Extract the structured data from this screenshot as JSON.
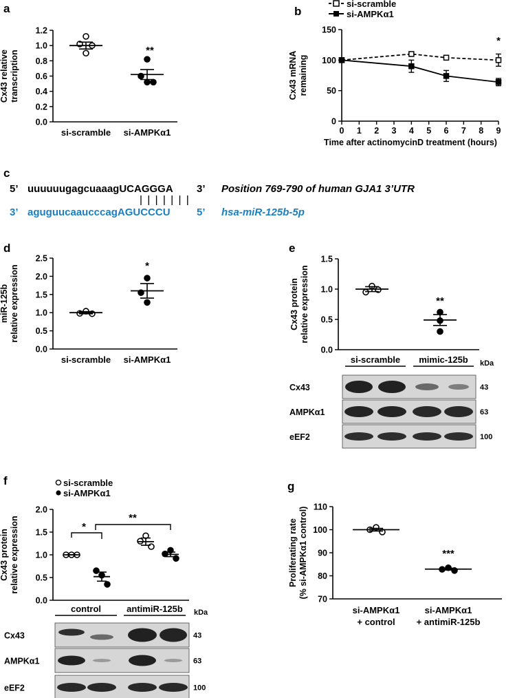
{
  "panels": {
    "a": "a",
    "b": "b",
    "c": "c",
    "d": "d",
    "e": "e",
    "f": "f",
    "g": "g"
  },
  "colors": {
    "mirna_blue": "#1a7fc1",
    "band": "#222222",
    "membrane": "#d2d2d2"
  },
  "chart_data": [
    {
      "id": "a",
      "type": "scatter",
      "ylabel": [
        "Cx43 relative",
        "transcription"
      ],
      "ylim": [
        0,
        1.2
      ],
      "yticks": [
        "0.0",
        "0.2",
        "0.4",
        "0.6",
        "0.8",
        "1.0",
        "1.2"
      ],
      "categories": [
        "si-scramble",
        "si-AMPKα1"
      ],
      "groups": [
        {
          "category": "si-scramble",
          "marker": "open",
          "points": [
            1.12,
            1.02,
            1.0,
            0.9
          ],
          "mean": 1.0,
          "sem": 0.045
        },
        {
          "category": "si-AMPKα1",
          "marker": "filled",
          "points": [
            0.82,
            0.6,
            0.52,
            0.52
          ],
          "mean": 0.62,
          "sem": 0.065
        }
      ],
      "annotations": [
        "**"
      ]
    },
    {
      "id": "b",
      "type": "line",
      "ylabel": [
        "Cx43 mRNA",
        "remaining"
      ],
      "xlabel": "Time after actinomycinD treatment (hours)",
      "xlim": [
        0,
        9
      ],
      "ylim": [
        0,
        150
      ],
      "xticks": [
        "0",
        "1",
        "2",
        "3",
        "4",
        "5",
        "6",
        "7",
        "8",
        "9"
      ],
      "yticks": [
        "0",
        "50",
        "100",
        "150"
      ],
      "series": [
        {
          "name": "si-scramble",
          "marker": "open-square",
          "dash": true,
          "x": [
            0,
            4,
            6,
            9
          ],
          "y": [
            100,
            110,
            104,
            100
          ],
          "err": [
            2,
            3,
            2,
            10
          ]
        },
        {
          "name": "si-AMPKα1",
          "marker": "filled-square",
          "dash": false,
          "x": [
            0,
            4,
            6,
            9
          ],
          "y": [
            100,
            90,
            74,
            64
          ],
          "err": [
            2,
            10,
            9,
            6
          ]
        }
      ],
      "annotations": [
        "*"
      ]
    },
    {
      "id": "d",
      "type": "scatter",
      "ylabel": [
        "miR-125b",
        "relative expression"
      ],
      "ylim": [
        0,
        2.5
      ],
      "yticks": [
        "0.0",
        "0.5",
        "1.0",
        "1.5",
        "2.0",
        "2.5"
      ],
      "categories": [
        "si-scramble",
        "si-AMPKα1"
      ],
      "groups": [
        {
          "category": "si-scramble",
          "marker": "open",
          "points": [
            1.04,
            0.98,
            0.97
          ],
          "mean": 1.0,
          "sem": 0.03
        },
        {
          "category": "si-AMPKα1",
          "marker": "filled",
          "points": [
            1.95,
            1.55,
            1.28
          ],
          "mean": 1.6,
          "sem": 0.2
        }
      ],
      "annotations": [
        "*"
      ]
    },
    {
      "id": "e",
      "type": "scatter",
      "ylabel": [
        "Cx43 protein",
        "relative expression"
      ],
      "ylim": [
        0,
        1.5
      ],
      "yticks": [
        "0.0",
        "0.5",
        "1.0",
        "1.5"
      ],
      "categories": [
        "si-scramble",
        "mimic-125b"
      ],
      "groups": [
        {
          "category": "si-scramble",
          "marker": "open",
          "points": [
            1.05,
            0.99,
            0.95
          ],
          "mean": 1.0,
          "sem": 0.04
        },
        {
          "category": "mimic-125b",
          "marker": "filled",
          "points": [
            0.62,
            0.48,
            0.3
          ],
          "mean": 0.49,
          "sem": 0.09
        }
      ],
      "annotations": [
        "**"
      ]
    },
    {
      "id": "f",
      "type": "scatter",
      "ylabel": [
        "Cx43 protein",
        "relative expression"
      ],
      "ylim": [
        0,
        2.0
      ],
      "yticks": [
        "0.0",
        "0.5",
        "1.0",
        "1.5",
        "2.0"
      ],
      "legend": [
        "si-scramble",
        "si-AMPKα1"
      ],
      "groups": [
        {
          "series": "si-scramble",
          "marker": "open",
          "points": [
            1.0,
            1.0,
            1.0
          ],
          "mean": 1.0,
          "sem": 0.0
        },
        {
          "series": "si-AMPKα1",
          "marker": "filled",
          "points": [
            0.65,
            0.55,
            0.35
          ],
          "mean": 0.52,
          "sem": 0.1
        },
        {
          "series": "si-scramble",
          "marker": "open",
          "points": [
            1.42,
            1.3,
            1.18
          ],
          "mean": 1.29,
          "sem": 0.08
        },
        {
          "series": "si-AMPKα1",
          "marker": "filled",
          "points": [
            1.1,
            1.02,
            0.92
          ],
          "mean": 1.01,
          "sem": 0.05
        }
      ],
      "annotations": [
        "*",
        "**"
      ]
    },
    {
      "id": "g",
      "type": "scatter",
      "ylabel": [
        "Proliferating rate",
        "(% si-AMPKα1 control)"
      ],
      "ylim": [
        70,
        110
      ],
      "yticks": [
        "70",
        "80",
        "90",
        "100",
        "110"
      ],
      "categories": [
        [
          "si-AMPKα1",
          "+ control"
        ],
        [
          "si-AMPKα1",
          "+ antimiR-125b"
        ]
      ],
      "groups": [
        {
          "marker": "open",
          "points": [
            101,
            100,
            99
          ],
          "mean": 100,
          "sem": 0.6
        },
        {
          "marker": "filled",
          "points": [
            83.5,
            82.8,
            82.3
          ],
          "mean": 82.9,
          "sem": 0.4
        }
      ],
      "annotations": [
        "***"
      ]
    }
  ],
  "panel_c": {
    "top_5p": "5’",
    "top_seq_lower": "uuuuuugagcuaaag",
    "top_seq_upper": "UCAGGGA",
    "top_3p": "3’",
    "top_desc": "Position 769-790 of human GJA1 3’UTR",
    "bottom_3p": "3’",
    "bottom_seq_lower": "aguguucaaucccag",
    "bottom_seq_upper": "AGUCCCU",
    "bottom_5p": "5’",
    "bottom_desc": "hsa-miR-125b-5p"
  },
  "blot_e": {
    "groups": [
      "si-scramble",
      "mimic-125b"
    ],
    "unit": "kDa",
    "rows": [
      {
        "protein": "Cx43",
        "kda": "43"
      },
      {
        "protein": "AMPKα1",
        "kda": "63"
      },
      {
        "protein": "eEF2",
        "kda": "100"
      }
    ]
  },
  "blot_f": {
    "groups": [
      "control",
      "antimiR-125b"
    ],
    "unit": "kDa",
    "rows": [
      {
        "protein": "Cx43",
        "kda": "43"
      },
      {
        "protein": "AMPKα1",
        "kda": "63"
      },
      {
        "protein": "eEF2",
        "kda": "100"
      }
    ]
  }
}
